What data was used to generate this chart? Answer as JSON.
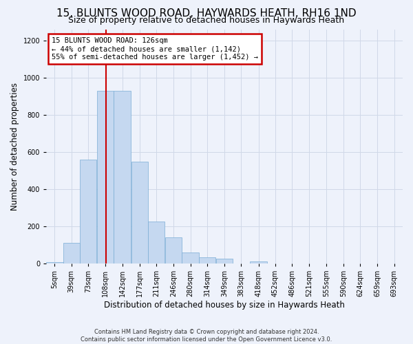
{
  "title": "15, BLUNTS WOOD ROAD, HAYWARDS HEATH, RH16 1ND",
  "subtitle": "Size of property relative to detached houses in Haywards Heath",
  "xlabel": "Distribution of detached houses by size in Haywards Heath",
  "ylabel": "Number of detached properties",
  "footer_line1": "Contains HM Land Registry data © Crown copyright and database right 2024.",
  "footer_line2": "Contains public sector information licensed under the Open Government Licence v3.0.",
  "bar_labels": [
    "5sqm",
    "39sqm",
    "73sqm",
    "108sqm",
    "142sqm",
    "177sqm",
    "211sqm",
    "246sqm",
    "280sqm",
    "314sqm",
    "349sqm",
    "383sqm",
    "418sqm",
    "452sqm",
    "486sqm",
    "521sqm",
    "555sqm",
    "590sqm",
    "624sqm",
    "659sqm",
    "693sqm"
  ],
  "bar_values": [
    8,
    112,
    558,
    928,
    928,
    548,
    225,
    140,
    58,
    32,
    25,
    0,
    10,
    0,
    0,
    0,
    0,
    0,
    0,
    0,
    0
  ],
  "bar_color": "#c5d8f0",
  "bar_edge_color": "#7aadd4",
  "grid_color": "#d0d8e8",
  "background_color": "#eef2fb",
  "property_label": "15 BLUNTS WOOD ROAD: 126sqm",
  "annotation_line1": "← 44% of detached houses are smaller (1,142)",
  "annotation_line2": "55% of semi-detached houses are larger (1,452) →",
  "vline_color": "#cc0000",
  "vline_x": 126,
  "annotation_box_color": "#cc0000",
  "ylim": [
    0,
    1260
  ],
  "title_fontsize": 11,
  "subtitle_fontsize": 9,
  "axis_label_fontsize": 8.5,
  "tick_fontsize": 7,
  "annotation_fontsize": 7.5
}
